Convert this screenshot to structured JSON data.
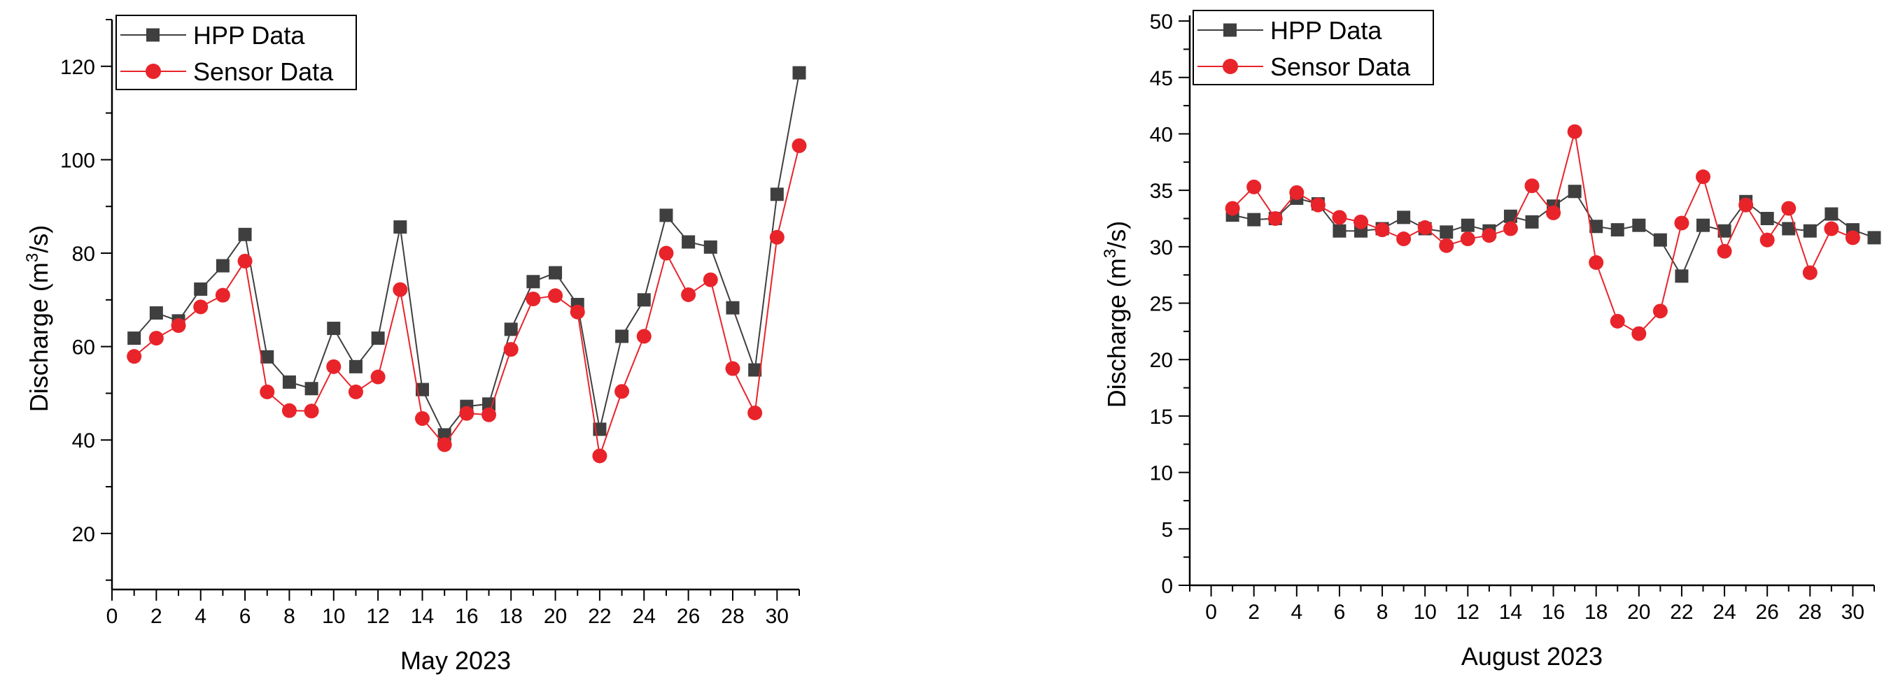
{
  "colors": {
    "hpp": "#3f3f3f",
    "sensor": "#e8242a",
    "axis": "#000000"
  },
  "chart_data": [
    {
      "type": "line",
      "xlabel": "May 2023",
      "ylabel": "Discharge (m³/s)",
      "ylabel_parts": {
        "pre": "Discharge (m",
        "sup": "3",
        "post": "/s)"
      },
      "xlim": [
        0,
        31
      ],
      "ylim": [
        8,
        130
      ],
      "xticks": [
        0,
        2,
        4,
        6,
        8,
        10,
        12,
        14,
        16,
        18,
        20,
        22,
        24,
        26,
        28,
        30
      ],
      "yticks": [
        20,
        40,
        60,
        80,
        100,
        120
      ],
      "x": [
        1,
        2,
        3,
        4,
        5,
        6,
        7,
        8,
        9,
        10,
        11,
        12,
        13,
        14,
        15,
        16,
        17,
        18,
        19,
        20,
        21,
        22,
        23,
        24,
        25,
        26,
        27,
        28,
        29,
        30,
        31
      ],
      "legend": [
        "HPP Data",
        "Sensor Data"
      ],
      "legend_position": "top-left",
      "series": [
        {
          "name": "HPP Data",
          "marker": "square",
          "values": [
            61.8,
            67.2,
            65.5,
            72.3,
            77.3,
            84.0,
            57.8,
            52.4,
            51.0,
            63.9,
            55.7,
            61.8,
            85.6,
            50.8,
            41.1,
            47.2,
            47.7,
            63.7,
            73.9,
            75.8,
            69.0,
            42.3,
            62.2,
            70.0,
            88.1,
            82.4,
            81.3,
            68.3,
            55.0,
            92.6,
            118.6
          ]
        },
        {
          "name": "Sensor Data",
          "marker": "circle",
          "values": [
            57.9,
            61.8,
            64.5,
            68.5,
            71.0,
            78.3,
            50.3,
            46.3,
            46.2,
            55.7,
            50.3,
            53.5,
            72.2,
            44.6,
            39.0,
            45.7,
            45.4,
            59.4,
            70.2,
            70.9,
            67.4,
            36.6,
            50.4,
            62.2,
            80.0,
            71.1,
            74.3,
            55.3,
            45.8,
            83.4,
            103.0
          ]
        }
      ]
    },
    {
      "type": "line",
      "xlabel": "August 2023",
      "ylabel": "Discharge (m³/s)",
      "ylabel_parts": {
        "pre": "Discharge (m",
        "sup": "3",
        "post": "/s)"
      },
      "xlim": [
        -1,
        31
      ],
      "ylim": [
        0,
        50.5
      ],
      "xticks": [
        0,
        2,
        4,
        6,
        8,
        10,
        12,
        14,
        16,
        18,
        20,
        22,
        24,
        26,
        28,
        30
      ],
      "yticks": [
        0,
        5,
        10,
        15,
        20,
        25,
        30,
        35,
        40,
        45,
        50
      ],
      "x": [
        1,
        2,
        3,
        4,
        5,
        6,
        7,
        8,
        9,
        10,
        11,
        12,
        13,
        14,
        15,
        16,
        17,
        18,
        19,
        20,
        21,
        22,
        23,
        24,
        25,
        26,
        27,
        28,
        29,
        30,
        31
      ],
      "legend": [
        "HPP Data",
        "Sensor Data"
      ],
      "legend_position": "top-left",
      "series": [
        {
          "name": "HPP Data",
          "marker": "square",
          "values": [
            32.8,
            32.4,
            32.5,
            34.3,
            33.8,
            31.4,
            31.4,
            31.6,
            32.6,
            31.6,
            31.3,
            31.9,
            31.4,
            32.7,
            32.2,
            33.6,
            34.9,
            31.8,
            31.5,
            31.9,
            30.6,
            27.4,
            31.9,
            31.4,
            34.0,
            32.5,
            31.6,
            31.4,
            32.9,
            31.5,
            30.8
          ]
        },
        {
          "name": "Sensor Data",
          "marker": "circle",
          "values": [
            33.4,
            35.3,
            32.5,
            34.8,
            33.7,
            32.6,
            32.2,
            31.5,
            30.7,
            31.7,
            30.1,
            30.7,
            31.0,
            31.6,
            35.4,
            33.0,
            40.2,
            28.6,
            23.4,
            22.3,
            24.3,
            32.1,
            36.2,
            29.6,
            33.7,
            30.6,
            33.4,
            27.7,
            31.6,
            30.8,
            null
          ]
        }
      ]
    }
  ]
}
